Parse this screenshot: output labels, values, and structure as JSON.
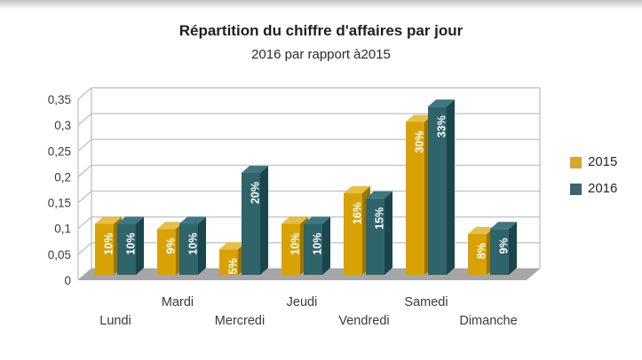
{
  "chart_data": {
    "type": "bar",
    "variant": "3d-clustered-column",
    "title": "Répartition du chiffre d'affaires par jour",
    "subtitle": "2016 par rapport à2015",
    "categories": [
      "Lundi",
      "Mardi",
      "Mercredi",
      "Jeudi",
      "Vendredi",
      "Samedi",
      "Dimanche"
    ],
    "series": [
      {
        "name": "2015",
        "values": [
          0.1,
          0.09,
          0.05,
          0.1,
          0.16,
          0.3,
          0.08
        ],
        "data_labels": [
          "10%",
          "9%",
          "5%",
          "10%",
          "16%",
          "30%",
          "8%"
        ],
        "color_front": "#D8A207",
        "color_side": "#9A7405",
        "color_top": "#E6BE49"
      },
      {
        "name": "2016",
        "values": [
          0.1,
          0.1,
          0.2,
          0.1,
          0.15,
          0.33,
          0.09
        ],
        "data_labels": [
          "10%",
          "10%",
          "20%",
          "10%",
          "15%",
          "33%",
          "9%"
        ],
        "color_front": "#2F646B",
        "color_side": "#1B454C",
        "color_top": "#3F7781"
      }
    ],
    "y_axis": {
      "min": 0,
      "max": 0.35,
      "tick_values": [
        0,
        0.05,
        0.1,
        0.15,
        0.2,
        0.25,
        0.3,
        0.35
      ],
      "tick_labels": [
        "0",
        "0,05",
        "0,1",
        "0,15",
        "0,2",
        "0,25",
        "0,3",
        "0,35"
      ],
      "grid": true
    },
    "legend": {
      "position": "right",
      "entries": [
        {
          "label": "2015",
          "color": "#D9A52B"
        },
        {
          "label": "2016",
          "color": "#39666D"
        }
      ]
    }
  },
  "colors": {
    "background": "#FFFFFF",
    "floor": "#A6A6A6",
    "gridline": "#C6C6C6",
    "axis_line": "#C0C0C0",
    "axis_text": "#3A3A3A",
    "title_text": "#1F1F1F",
    "bar_label_text": "#FFFFFF"
  }
}
